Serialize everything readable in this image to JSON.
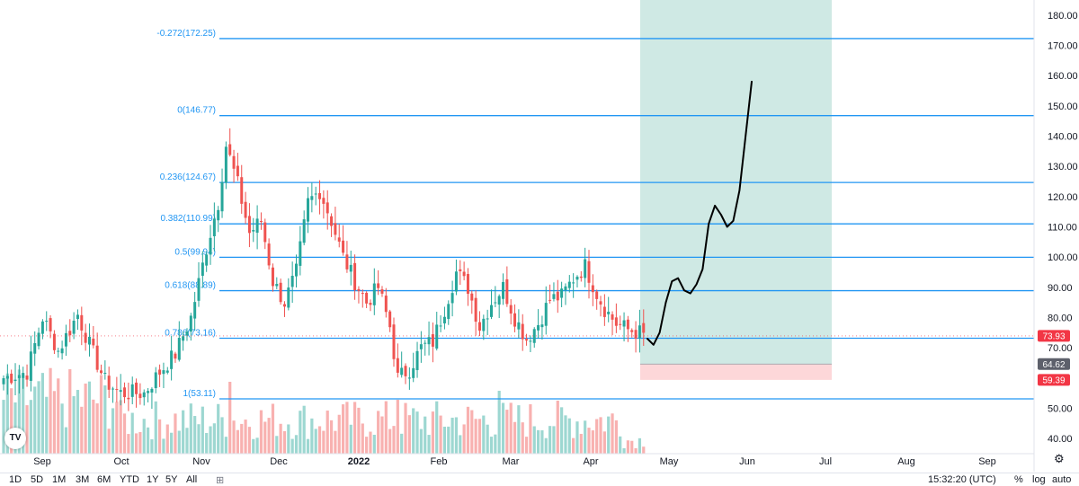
{
  "chart_data": {
    "type": "candlestick",
    "y_range": [
      35,
      185
    ],
    "x_axis_ticks": [
      "Sep",
      "Oct",
      "Nov",
      "Dec",
      "2022",
      "Feb",
      "Mar",
      "Apr",
      "May",
      "Jun",
      "Jul",
      "Aug",
      "Sep"
    ],
    "y_axis_ticks": [
      "180.00",
      "170.00",
      "160.00",
      "150.00",
      "140.00",
      "130.00",
      "120.00",
      "110.00",
      "100.00",
      "90.00",
      "80.00",
      "70.00",
      "50.00",
      "40.00"
    ],
    "fib_levels": [
      {
        "label": "-0.272(172.25)",
        "value": 172.25
      },
      {
        "label": "0(146.77)",
        "value": 146.77
      },
      {
        "label": "0.236(124.67)",
        "value": 124.67
      },
      {
        "label": "0.382(110.99)",
        "value": 110.99
      },
      {
        "label": "0.5(99.94)",
        "value": 99.94
      },
      {
        "label": "0.618(88.89)",
        "value": 88.89
      },
      {
        "label": "0.786(73.16)",
        "value": 73.16
      },
      {
        "label": "1(53.11)",
        "value": 53.11
      }
    ],
    "price_tags": [
      {
        "label": "73.93",
        "value": 73.93,
        "color": "#f23645"
      },
      {
        "label": "64.62",
        "value": 64.62,
        "color": "#5d606b"
      },
      {
        "label": "59.39",
        "value": 59.39,
        "color": "#f23645"
      }
    ],
    "position": {
      "entry": 64.62,
      "target": 185,
      "stop": 59.39,
      "start": "Apr",
      "end": "Jul"
    },
    "projection": [
      73,
      71,
      75,
      85,
      92,
      93,
      89,
      88,
      91,
      96,
      111,
      117,
      114,
      110,
      112,
      122,
      140,
      158
    ],
    "price_keypoints": [
      [
        0,
        60
      ],
      [
        6,
        62
      ],
      [
        10,
        80
      ],
      [
        14,
        69
      ],
      [
        19,
        81
      ],
      [
        22,
        71
      ],
      [
        26,
        59
      ],
      [
        30,
        55
      ],
      [
        36,
        55
      ],
      [
        40,
        62
      ],
      [
        44,
        68
      ],
      [
        48,
        80
      ],
      [
        52,
        103
      ],
      [
        55,
        118
      ],
      [
        57,
        137
      ],
      [
        60,
        124
      ],
      [
        63,
        108
      ],
      [
        66,
        112
      ],
      [
        69,
        92
      ],
      [
        72,
        85
      ],
      [
        75,
        95
      ],
      [
        78,
        118
      ],
      [
        81,
        122
      ],
      [
        84,
        112
      ],
      [
        87,
        100
      ],
      [
        90,
        92
      ],
      [
        93,
        85
      ],
      [
        96,
        90
      ],
      [
        99,
        77
      ],
      [
        101,
        60
      ],
      [
        104,
        63
      ],
      [
        107,
        70
      ],
      [
        110,
        72
      ],
      [
        113,
        83
      ],
      [
        116,
        95
      ],
      [
        119,
        90
      ],
      [
        122,
        77
      ],
      [
        125,
        85
      ],
      [
        128,
        90
      ],
      [
        131,
        80
      ],
      [
        134,
        73
      ],
      [
        137,
        78
      ],
      [
        140,
        86
      ],
      [
        143,
        87
      ],
      [
        146,
        93
      ],
      [
        149,
        97
      ],
      [
        152,
        88
      ],
      [
        154,
        83
      ],
      [
        157,
        78
      ],
      [
        160,
        76
      ],
      [
        163,
        75
      ],
      [
        164,
        74
      ]
    ],
    "colors": {
      "up": "#26a69a",
      "down": "#ef5350",
      "fib": "#2196f3",
      "fib_label": "#2196f3",
      "target_zone": "#cfe9e4",
      "stop_zone": "#fdd7d9",
      "projection": "#000000"
    }
  },
  "bottombar": {
    "ranges": [
      "1D",
      "5D",
      "1M",
      "3M",
      "6M",
      "YTD",
      "1Y",
      "5Y",
      "All"
    ],
    "time": "15:32:20 (UTC)",
    "percent": "%",
    "log": "log",
    "auto": "auto"
  },
  "logo": {
    "text": "TV"
  }
}
